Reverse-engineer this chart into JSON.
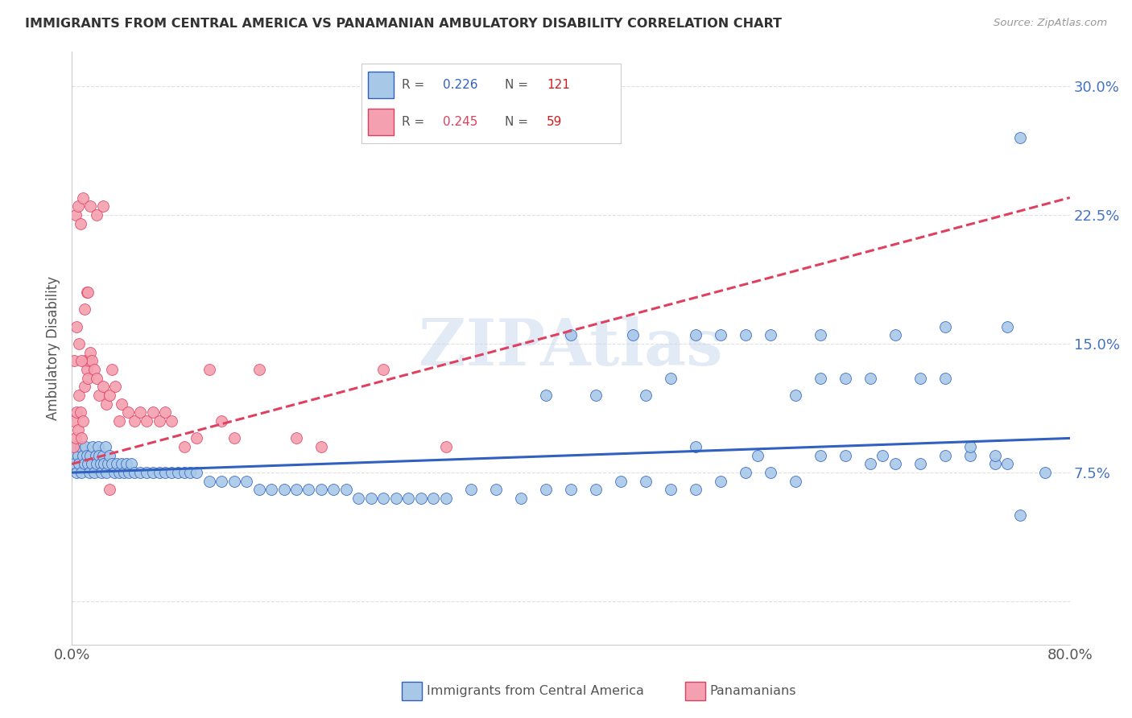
{
  "title": "IMMIGRANTS FROM CENTRAL AMERICA VS PANAMANIAN AMBULATORY DISABILITY CORRELATION CHART",
  "source": "Source: ZipAtlas.com",
  "xlabel": "",
  "ylabel": "Ambulatory Disability",
  "xlim": [
    0.0,
    0.8
  ],
  "ylim": [
    -0.025,
    0.32
  ],
  "yticks": [
    0.0,
    0.075,
    0.15,
    0.225,
    0.3
  ],
  "ytick_labels": [
    "",
    "7.5%",
    "15.0%",
    "22.5%",
    "30.0%"
  ],
  "xticks": [
    0.0,
    0.1,
    0.2,
    0.3,
    0.4,
    0.5,
    0.6,
    0.7,
    0.8
  ],
  "xtick_labels": [
    "0.0%",
    "",
    "",
    "",
    "",
    "",
    "",
    "",
    "80.0%"
  ],
  "blue_R": 0.226,
  "blue_N": 121,
  "pink_R": 0.245,
  "pink_N": 59,
  "blue_color": "#a8c8e8",
  "pink_color": "#f4a0b0",
  "blue_line_color": "#3060c0",
  "pink_line_color": "#e04060",
  "watermark": "ZIPAtlas",
  "watermark_color": "#b8cfe8",
  "background_color": "#ffffff",
  "grid_color": "#e0e0e0",
  "blue_scatter_x": [
    0.001,
    0.002,
    0.003,
    0.004,
    0.005,
    0.006,
    0.007,
    0.008,
    0.009,
    0.01,
    0.011,
    0.012,
    0.013,
    0.014,
    0.015,
    0.016,
    0.017,
    0.018,
    0.019,
    0.02,
    0.021,
    0.022,
    0.023,
    0.024,
    0.025,
    0.026,
    0.027,
    0.028,
    0.029,
    0.03,
    0.032,
    0.034,
    0.036,
    0.038,
    0.04,
    0.042,
    0.044,
    0.046,
    0.048,
    0.05,
    0.055,
    0.06,
    0.065,
    0.07,
    0.075,
    0.08,
    0.085,
    0.09,
    0.095,
    0.1,
    0.11,
    0.12,
    0.13,
    0.14,
    0.15,
    0.16,
    0.17,
    0.18,
    0.19,
    0.2,
    0.21,
    0.22,
    0.23,
    0.24,
    0.25,
    0.26,
    0.27,
    0.28,
    0.29,
    0.3,
    0.32,
    0.34,
    0.36,
    0.38,
    0.4,
    0.42,
    0.44,
    0.46,
    0.48,
    0.5,
    0.52,
    0.54,
    0.56,
    0.58,
    0.6,
    0.62,
    0.64,
    0.66,
    0.68,
    0.7,
    0.72,
    0.74,
    0.48,
    0.52,
    0.56,
    0.6,
    0.64,
    0.68,
    0.72,
    0.75,
    0.4,
    0.45,
    0.5,
    0.55,
    0.6,
    0.65,
    0.7,
    0.38,
    0.42,
    0.46,
    0.5,
    0.54,
    0.58,
    0.62,
    0.66,
    0.7,
    0.74,
    0.76,
    0.78,
    0.75,
    0.76
  ],
  "blue_scatter_y": [
    0.085,
    0.08,
    0.09,
    0.075,
    0.085,
    0.08,
    0.09,
    0.075,
    0.085,
    0.08,
    0.09,
    0.085,
    0.08,
    0.075,
    0.085,
    0.08,
    0.09,
    0.075,
    0.085,
    0.08,
    0.09,
    0.085,
    0.08,
    0.075,
    0.085,
    0.08,
    0.09,
    0.075,
    0.08,
    0.085,
    0.08,
    0.075,
    0.08,
    0.075,
    0.08,
    0.075,
    0.08,
    0.075,
    0.08,
    0.075,
    0.075,
    0.075,
    0.075,
    0.075,
    0.075,
    0.075,
    0.075,
    0.075,
    0.075,
    0.075,
    0.07,
    0.07,
    0.07,
    0.07,
    0.065,
    0.065,
    0.065,
    0.065,
    0.065,
    0.065,
    0.065,
    0.065,
    0.06,
    0.06,
    0.06,
    0.06,
    0.06,
    0.06,
    0.06,
    0.06,
    0.065,
    0.065,
    0.06,
    0.065,
    0.065,
    0.065,
    0.07,
    0.07,
    0.065,
    0.065,
    0.07,
    0.075,
    0.075,
    0.07,
    0.085,
    0.085,
    0.08,
    0.08,
    0.08,
    0.085,
    0.085,
    0.08,
    0.13,
    0.155,
    0.155,
    0.13,
    0.13,
    0.13,
    0.09,
    0.08,
    0.155,
    0.155,
    0.09,
    0.085,
    0.155,
    0.085,
    0.16,
    0.12,
    0.12,
    0.12,
    0.155,
    0.155,
    0.12,
    0.13,
    0.155,
    0.13,
    0.085,
    0.05,
    0.075,
    0.16,
    0.27
  ],
  "pink_scatter_x": [
    0.001,
    0.002,
    0.003,
    0.004,
    0.005,
    0.006,
    0.007,
    0.008,
    0.009,
    0.01,
    0.011,
    0.012,
    0.013,
    0.014,
    0.015,
    0.016,
    0.018,
    0.02,
    0.022,
    0.025,
    0.028,
    0.03,
    0.032,
    0.035,
    0.038,
    0.04,
    0.045,
    0.05,
    0.055,
    0.06,
    0.065,
    0.07,
    0.075,
    0.08,
    0.09,
    0.1,
    0.11,
    0.12,
    0.13,
    0.15,
    0.18,
    0.2,
    0.25,
    0.3,
    0.003,
    0.005,
    0.007,
    0.009,
    0.012,
    0.015,
    0.02,
    0.025,
    0.03,
    0.002,
    0.004,
    0.006,
    0.008,
    0.01,
    0.013
  ],
  "pink_scatter_y": [
    0.09,
    0.105,
    0.095,
    0.11,
    0.1,
    0.12,
    0.11,
    0.095,
    0.105,
    0.125,
    0.14,
    0.135,
    0.13,
    0.14,
    0.145,
    0.14,
    0.135,
    0.13,
    0.12,
    0.125,
    0.115,
    0.12,
    0.135,
    0.125,
    0.105,
    0.115,
    0.11,
    0.105,
    0.11,
    0.105,
    0.11,
    0.105,
    0.11,
    0.105,
    0.09,
    0.095,
    0.135,
    0.105,
    0.095,
    0.135,
    0.095,
    0.09,
    0.135,
    0.09,
    0.225,
    0.23,
    0.22,
    0.235,
    0.18,
    0.23,
    0.225,
    0.23,
    0.065,
    0.14,
    0.16,
    0.15,
    0.14,
    0.17,
    0.18
  ]
}
